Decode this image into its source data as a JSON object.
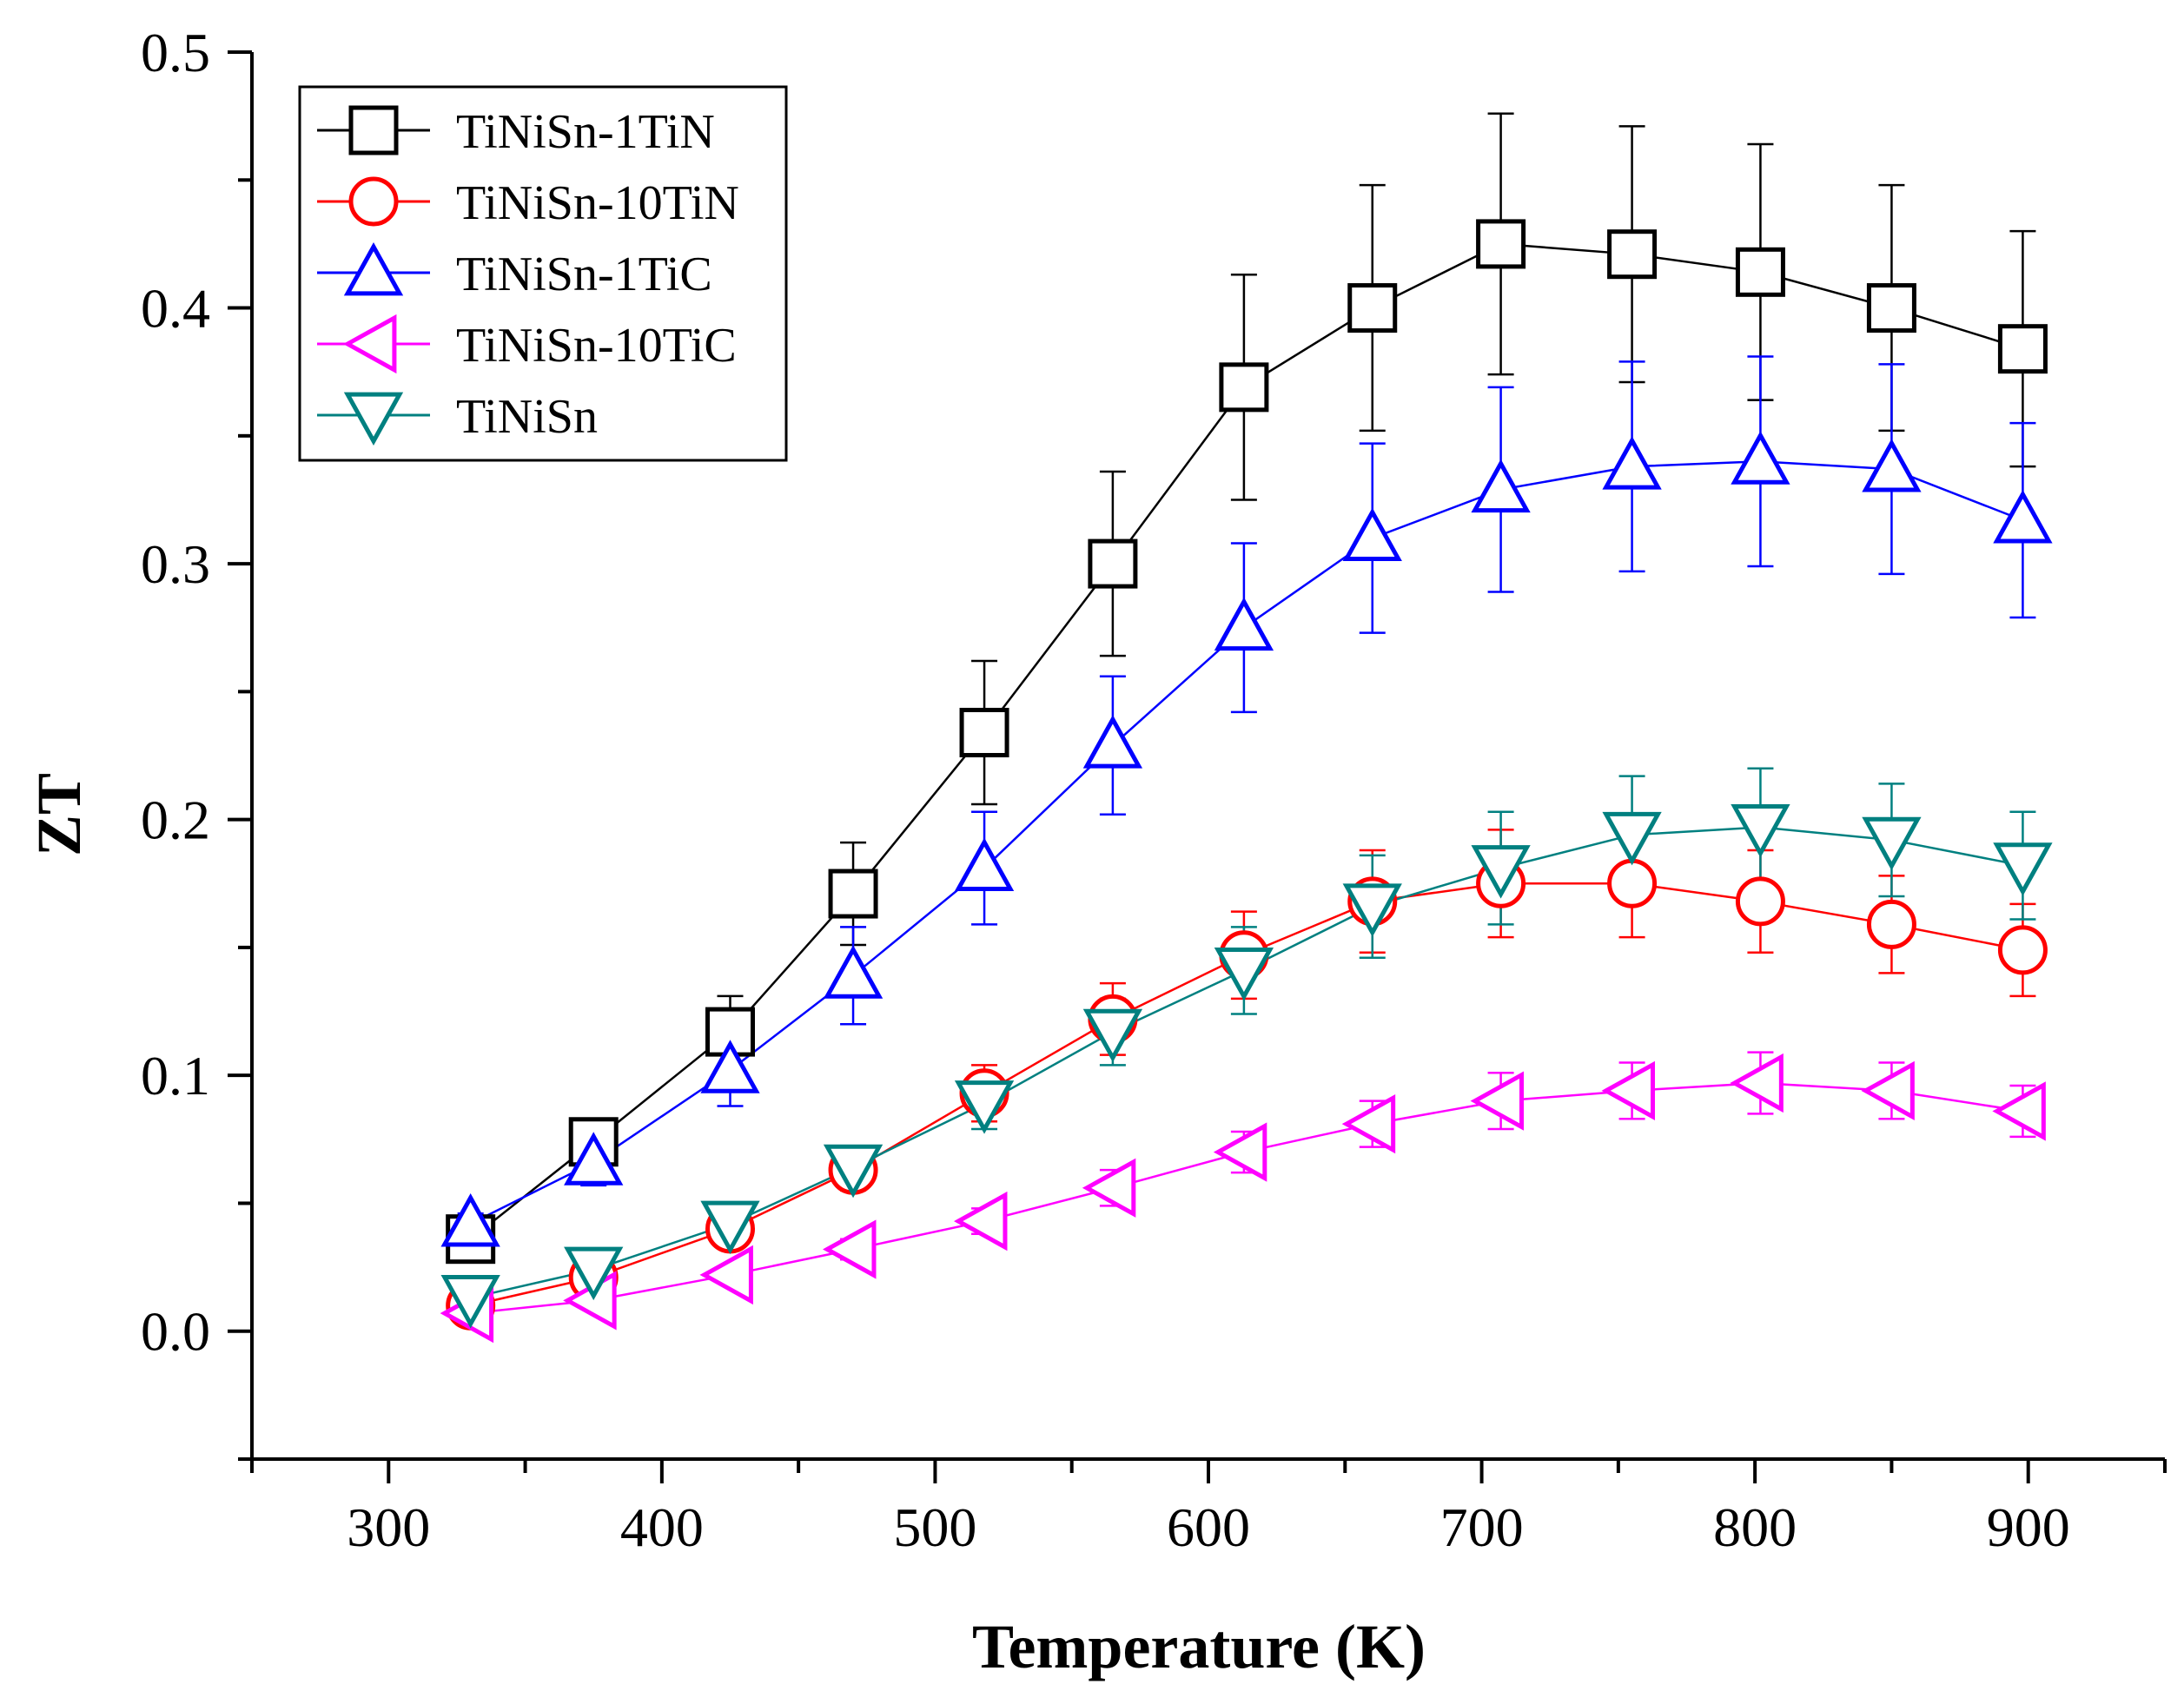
{
  "chart_data": {
    "type": "line",
    "title": "",
    "xlabel": "Temperature (K)",
    "ylabel": "ZT",
    "xlim": [
      250,
      950
    ],
    "ylim": [
      -0.05,
      0.5
    ],
    "xticks": [
      300,
      400,
      500,
      600,
      700,
      800,
      900
    ],
    "xtick_labels": [
      "300",
      "400",
      "500",
      "600",
      "700",
      "800",
      "900"
    ],
    "yticks": [
      0.0,
      0.1,
      0.2,
      0.3,
      0.4,
      0.5
    ],
    "ytick_labels": [
      "0.0",
      "0.1",
      "0.2",
      "0.3",
      "0.4",
      "0.5"
    ],
    "grid": false,
    "legend_position": "top-left",
    "series": [
      {
        "name": "TiNiSn-1TiN",
        "color": "#000000",
        "marker": "square",
        "x": [
          330,
          375,
          425,
          470,
          518,
          565,
          613,
          660,
          707,
          755,
          802,
          850,
          898
        ],
        "y": [
          0.036,
          0.074,
          0.117,
          0.171,
          0.234,
          0.3,
          0.369,
          0.4,
          0.425,
          0.421,
          0.414,
          0.4,
          0.384
        ],
        "err": [
          0.004,
          0.009,
          0.014,
          0.02,
          0.028,
          0.036,
          0.044,
          0.048,
          0.051,
          0.05,
          0.05,
          0.048,
          0.046
        ]
      },
      {
        "name": "TiNiSn-10TiN",
        "color": "#ff0000",
        "marker": "circle",
        "x": [
          330,
          375,
          425,
          470,
          518,
          565,
          613,
          660,
          707,
          755,
          802,
          850,
          898
        ],
        "y": [
          0.01,
          0.021,
          0.04,
          0.063,
          0.093,
          0.122,
          0.147,
          0.168,
          0.175,
          0.175,
          0.168,
          0.159,
          0.149
        ],
        "err": [
          0.002,
          0.003,
          0.005,
          0.008,
          0.011,
          0.014,
          0.017,
          0.02,
          0.021,
          0.021,
          0.02,
          0.019,
          0.018
        ]
      },
      {
        "name": "TiNiSn-1TiC",
        "color": "#0000ff",
        "marker": "triangle-up",
        "x": [
          330,
          375,
          425,
          470,
          518,
          565,
          613,
          660,
          707,
          755,
          802,
          850,
          898
        ],
        "y": [
          0.042,
          0.066,
          0.102,
          0.139,
          0.181,
          0.229,
          0.275,
          0.31,
          0.329,
          0.338,
          0.34,
          0.337,
          0.317
        ],
        "err": [
          0.004,
          0.009,
          0.014,
          0.019,
          0.022,
          0.027,
          0.033,
          0.037,
          0.04,
          0.041,
          0.041,
          0.041,
          0.038
        ]
      },
      {
        "name": "TiNiSn-10TiC",
        "color": "#ff00ff",
        "marker": "triangle-left",
        "x": [
          330,
          375,
          425,
          470,
          518,
          565,
          613,
          660,
          707,
          755,
          802,
          850,
          898
        ],
        "y": [
          0.007,
          0.012,
          0.022,
          0.032,
          0.043,
          0.056,
          0.07,
          0.081,
          0.09,
          0.094,
          0.097,
          0.094,
          0.086
        ],
        "err": [
          0.001,
          0.002,
          0.003,
          0.004,
          0.005,
          0.007,
          0.008,
          0.009,
          0.011,
          0.011,
          0.012,
          0.011,
          0.01
        ]
      },
      {
        "name": "TiNiSn",
        "color": "#008080",
        "marker": "triangle-down",
        "x": [
          330,
          375,
          425,
          470,
          518,
          565,
          613,
          660,
          707,
          755,
          802,
          850,
          898
        ],
        "y": [
          0.013,
          0.024,
          0.042,
          0.064,
          0.089,
          0.117,
          0.141,
          0.166,
          0.181,
          0.194,
          0.197,
          0.192,
          0.182
        ],
        "err": [
          0.002,
          0.003,
          0.005,
          0.008,
          0.01,
          0.013,
          0.017,
          0.02,
          0.022,
          0.023,
          0.023,
          0.022,
          0.021
        ]
      }
    ]
  }
}
